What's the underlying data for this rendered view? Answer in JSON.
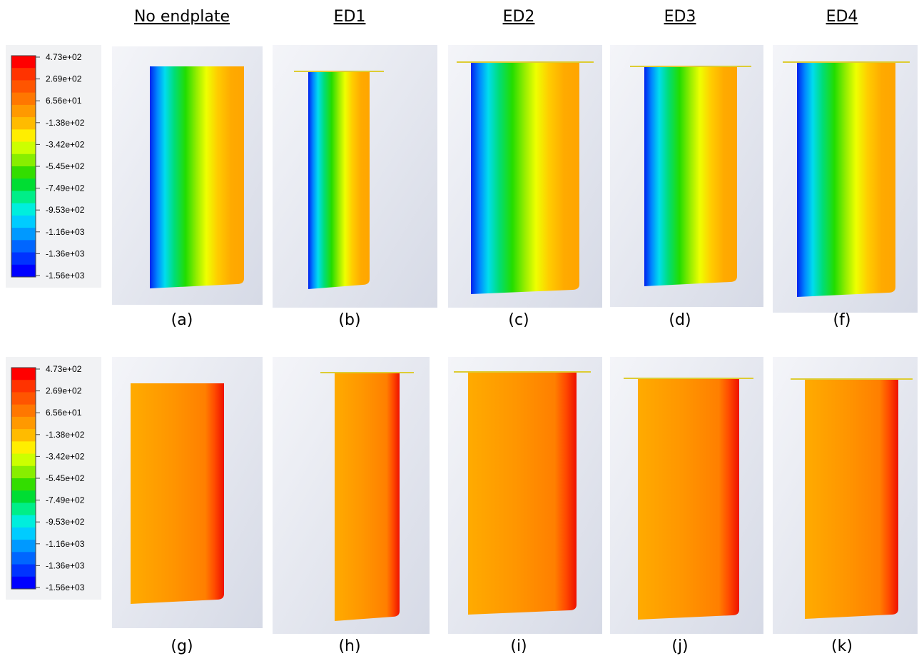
{
  "column_headers": [
    "No endplate",
    "ED1",
    "ED2",
    "ED3",
    "ED4"
  ],
  "legends": [
    {
      "labels": [
        "4.73e+02",
        "2.69e+02",
        "6.56e+01",
        "-1.38e+02",
        "-3.42e+02",
        "-5.45e+02",
        "-7.49e+02",
        "-9.53e+02",
        "-1.16e+03",
        "-1.36e+03",
        "-1.56e+03"
      ]
    },
    {
      "labels": [
        "4.73e+02",
        "2.69e+02",
        "6.56e+01",
        "-1.38e+02",
        "-3.42e+02",
        "-5.45e+02",
        "-7.49e+02",
        "-9.53e+02",
        "-1.16e+03",
        "-1.36e+03",
        "-1.56e+03"
      ]
    }
  ],
  "panel_labels": [
    [
      "(a)",
      "(b)",
      "(c)",
      "(d)",
      "(f)"
    ],
    [
      "(g)",
      "(h)",
      "(i)",
      "(j)",
      "(k)"
    ]
  ]
}
